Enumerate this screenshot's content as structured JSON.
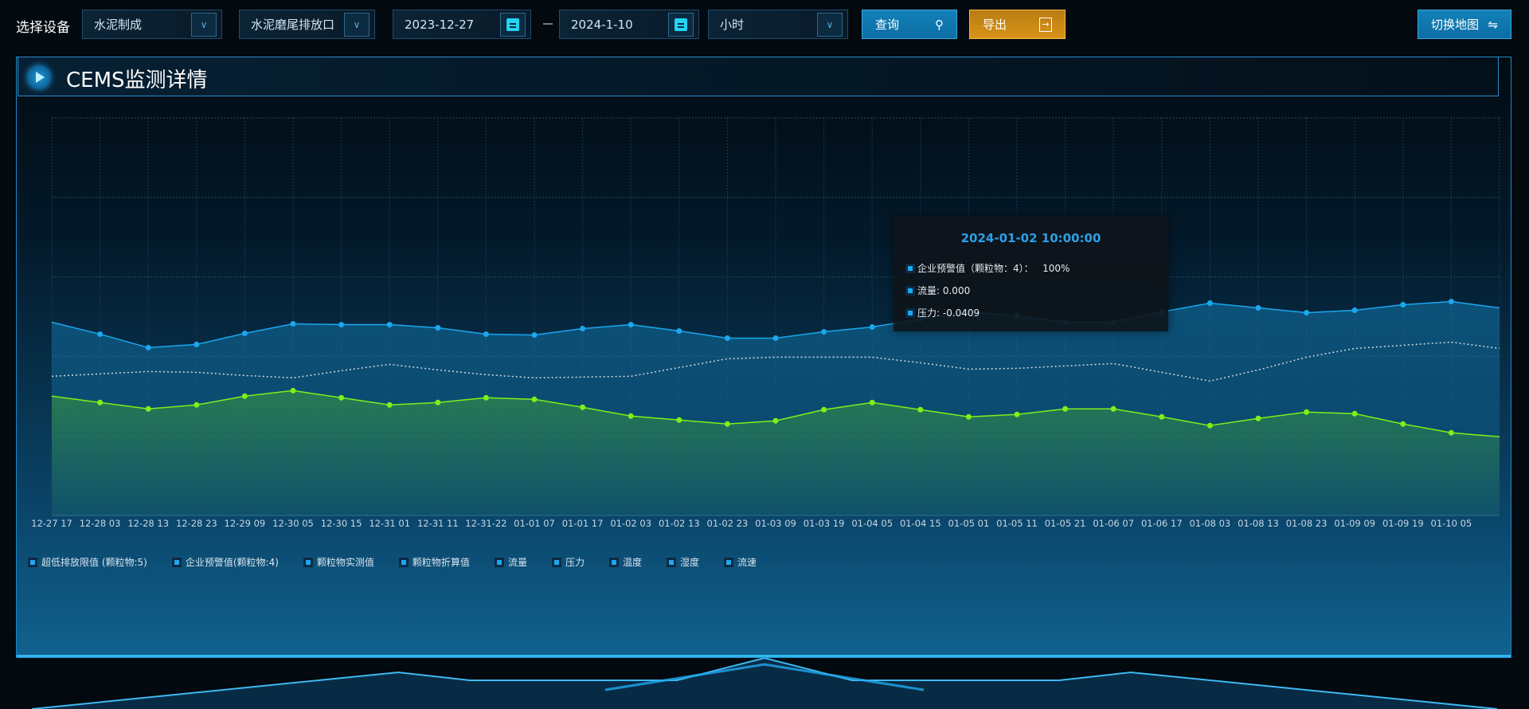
{
  "toolbar": {
    "device_label": "选择设备",
    "device_select": "水泥制成",
    "outlet_select": "水泥磨尾排放口",
    "start_date": "2023-12-27",
    "end_date": "2024-1-10",
    "interval_select": "小时",
    "query_label": "查询",
    "export_label": "导出",
    "switch_map_label": "切换地图"
  },
  "panel": {
    "title": "CEMS监测详情"
  },
  "tooltip": {
    "title": "2024-01-02 10:00:00",
    "rows": [
      "企业预警值（颗粒物：4）：   100%",
      "流量: 0.000",
      "压力: -0.0409"
    ]
  },
  "legend": [
    "超低排放限值 (颗粒物:5)",
    "企业预警值(颗粒物:4)",
    "颗粒物实测值",
    "颗粒物折算值",
    "流量",
    "压力",
    "温度",
    "湿度",
    "流速"
  ],
  "colors": {
    "blue_series": "#1aa8f0",
    "green_series": "#7cf01a",
    "dotted_series": "#d0d8e0",
    "accent": "#1380b8",
    "export": "#d99418"
  },
  "chart_data": {
    "type": "line",
    "grid": true,
    "ylim": [
      0,
      5
    ],
    "legend_position": "bottom-left",
    "categories": [
      "12-27 17",
      "12-28 03",
      "12-28 13",
      "12-28 23",
      "12-29 09",
      "12-30 05",
      "12-30 15",
      "12-31 01",
      "12-31 11",
      "12-31-22",
      "01-01 07",
      "01-01 17",
      "01-02 03",
      "01-02 13",
      "01-02 23",
      "01-03 09",
      "01-03 19",
      "01-04 05",
      "01-04 15",
      "01-05 01",
      "01-05 11",
      "01-05 21",
      "01-06 07",
      "01-06 17",
      "01-08 03",
      "01-08 13",
      "01-08 23",
      "01-09 09",
      "01-09 19",
      "01-10 05",
      ""
    ],
    "series": [
      {
        "color": "#1aa8f0",
        "style": "solid-area",
        "values": [
          2.43,
          2.28,
          2.11,
          2.15,
          2.29,
          2.41,
          2.4,
          2.4,
          2.36,
          2.28,
          2.27,
          2.35,
          2.4,
          2.32,
          2.23,
          2.23,
          2.31,
          2.37,
          2.47,
          2.56,
          2.51,
          2.43,
          2.43,
          2.56,
          2.67,
          2.61,
          2.55,
          2.58,
          2.65,
          2.69,
          2.61
        ]
      },
      {
        "color": "#d0d8e0",
        "style": "dotted",
        "values": [
          1.75,
          1.78,
          1.81,
          1.8,
          1.76,
          1.73,
          1.82,
          1.9,
          1.83,
          1.77,
          1.73,
          1.74,
          1.75,
          1.86,
          1.97,
          1.99,
          1.99,
          1.99,
          1.92,
          1.84,
          1.85,
          1.88,
          1.91,
          1.8,
          1.69,
          1.83,
          1.99,
          2.1,
          2.14,
          2.18,
          2.1
        ]
      },
      {
        "color": "#7cf01a",
        "style": "solid-area",
        "values": [
          1.5,
          1.42,
          1.34,
          1.39,
          1.5,
          1.57,
          1.48,
          1.39,
          1.42,
          1.48,
          1.46,
          1.36,
          1.25,
          1.2,
          1.15,
          1.19,
          1.33,
          1.42,
          1.33,
          1.24,
          1.27,
          1.34,
          1.34,
          1.24,
          1.13,
          1.22,
          1.3,
          1.28,
          1.15,
          1.04,
          0.99
        ]
      }
    ]
  }
}
